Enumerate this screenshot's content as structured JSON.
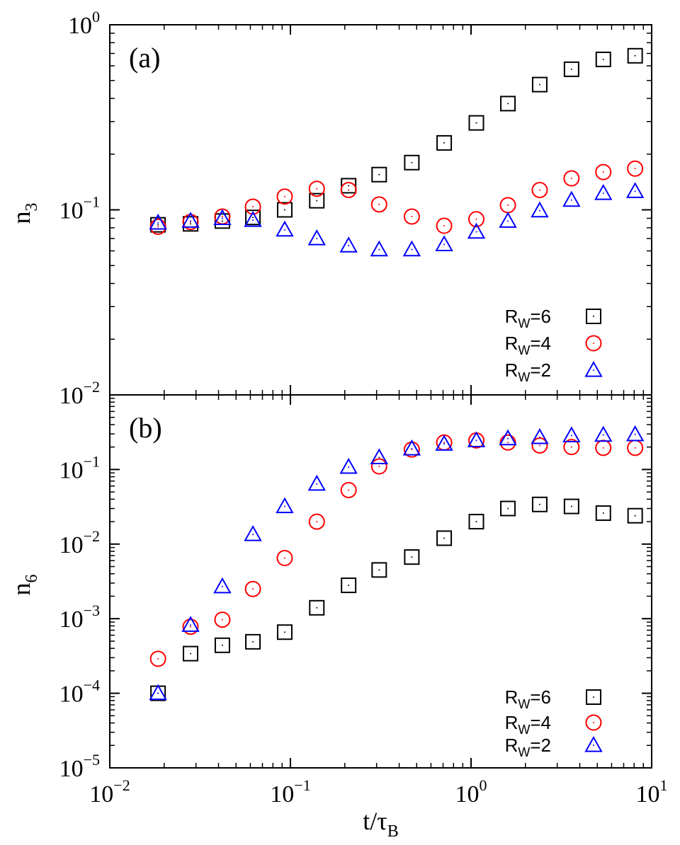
{
  "colors": {
    "axis": "#000000",
    "Rw6": "#000000",
    "Rw4": "#ff0000",
    "Rw2": "#0000ff"
  },
  "xaxis": {
    "label_main": "t/τ",
    "label_sub": "B",
    "range": [
      0.01,
      10
    ],
    "scale": "log",
    "tick_labels": [
      {
        "base": "10",
        "exp": "−2",
        "value": 0.01
      },
      {
        "base": "10",
        "exp": "−1",
        "value": 0.1
      },
      {
        "base": "10",
        "exp": "0",
        "value": 1
      },
      {
        "base": "10",
        "exp": "1",
        "value": 10
      }
    ]
  },
  "chart_data": [
    {
      "type": "scatter",
      "panel_label": "(a)",
      "ylabel_main": "n",
      "ylabel_sub": "3",
      "xscale": "log",
      "yscale": "log",
      "xlim": [
        0.01,
        10
      ],
      "ylim": [
        0.01,
        1
      ],
      "y_tick_labels": [
        {
          "base": "10",
          "exp": "−2",
          "value": 0.01
        },
        {
          "base": "10",
          "exp": "−1",
          "value": 0.1
        },
        {
          "base": "10",
          "exp": "0",
          "value": 1
        }
      ],
      "legend_position": "bottom-right",
      "series": [
        {
          "key": "Rw6",
          "name_main": "R",
          "name_sub": "W",
          "name_tail": "=6",
          "marker": "square",
          "x": [
            0.0185,
            0.028,
            0.042,
            0.062,
            0.093,
            0.14,
            0.21,
            0.31,
            0.47,
            0.71,
            1.07,
            1.6,
            2.4,
            3.6,
            5.4,
            8.1
          ],
          "values": [
            0.083,
            0.084,
            0.087,
            0.091,
            0.1,
            0.112,
            0.135,
            0.155,
            0.18,
            0.23,
            0.295,
            0.375,
            0.475,
            0.575,
            0.65,
            0.68
          ]
        },
        {
          "key": "Rw4",
          "name_main": "R",
          "name_sub": "W",
          "name_tail": "=4",
          "marker": "circle",
          "x": [
            0.0185,
            0.028,
            0.042,
            0.062,
            0.093,
            0.14,
            0.21,
            0.31,
            0.47,
            0.71,
            1.07,
            1.6,
            2.4,
            3.6,
            5.4,
            8.1
          ],
          "values": [
            0.081,
            0.086,
            0.092,
            0.104,
            0.118,
            0.13,
            0.128,
            0.107,
            0.092,
            0.082,
            0.089,
            0.106,
            0.128,
            0.148,
            0.16,
            0.167
          ]
        },
        {
          "key": "Rw2",
          "name_main": "R",
          "name_sub": "W",
          "name_tail": "=2",
          "marker": "triangle",
          "x": [
            0.0185,
            0.028,
            0.042,
            0.062,
            0.093,
            0.14,
            0.21,
            0.31,
            0.47,
            0.71,
            1.07,
            1.6,
            2.4,
            3.6,
            5.4,
            8.1
          ],
          "values": [
            0.085,
            0.087,
            0.09,
            0.088,
            0.078,
            0.07,
            0.064,
            0.061,
            0.061,
            0.065,
            0.076,
            0.087,
            0.099,
            0.113,
            0.123,
            0.126
          ]
        }
      ]
    },
    {
      "type": "scatter",
      "panel_label": "(b)",
      "ylabel_main": "n",
      "ylabel_sub": "6",
      "xscale": "log",
      "yscale": "log",
      "xlim": [
        0.01,
        10
      ],
      "ylim": [
        1e-05,
        1
      ],
      "y_tick_labels": [
        {
          "base": "10",
          "exp": "−5",
          "value": 1e-05
        },
        {
          "base": "10",
          "exp": "−4",
          "value": 0.0001
        },
        {
          "base": "10",
          "exp": "−3",
          "value": 0.001
        },
        {
          "base": "10",
          "exp": "−2",
          "value": 0.01
        },
        {
          "base": "10",
          "exp": "−1",
          "value": 0.1
        }
      ],
      "legend_position": "bottom-right",
      "series": [
        {
          "key": "Rw6",
          "name_main": "R",
          "name_sub": "W",
          "name_tail": "=6",
          "marker": "square",
          "x": [
            0.0185,
            0.028,
            0.042,
            0.062,
            0.093,
            0.14,
            0.21,
            0.31,
            0.47,
            0.71,
            1.07,
            1.6,
            2.4,
            3.6,
            5.4,
            8.1
          ],
          "values": [
            0.0001,
            0.00034,
            0.00044,
            0.00049,
            0.00066,
            0.0014,
            0.0028,
            0.0045,
            0.0067,
            0.012,
            0.02,
            0.03,
            0.034,
            0.032,
            0.026,
            0.024
          ]
        },
        {
          "key": "Rw4",
          "name_main": "R",
          "name_sub": "W",
          "name_tail": "=4",
          "marker": "circle",
          "x": [
            0.0185,
            0.028,
            0.042,
            0.062,
            0.093,
            0.14,
            0.21,
            0.31,
            0.47,
            0.71,
            1.07,
            1.6,
            2.4,
            3.6,
            5.4,
            8.1
          ],
          "values": [
            0.00029,
            0.00078,
            0.00097,
            0.0025,
            0.0065,
            0.02,
            0.053,
            0.11,
            0.185,
            0.23,
            0.245,
            0.23,
            0.21,
            0.2,
            0.195,
            0.195
          ]
        },
        {
          "key": "Rw2",
          "name_main": "R",
          "name_sub": "W",
          "name_tail": "=2",
          "marker": "triangle",
          "x": [
            0.0185,
            0.028,
            0.042,
            0.062,
            0.093,
            0.14,
            0.21,
            0.31,
            0.47,
            0.71,
            1.07,
            1.6,
            2.4,
            3.6,
            5.4,
            8.1
          ],
          "values": [
            0.0001,
            0.00082,
            0.0027,
            0.0135,
            0.032,
            0.064,
            0.108,
            0.145,
            0.19,
            0.22,
            0.245,
            0.26,
            0.27,
            0.285,
            0.29,
            0.295
          ]
        }
      ]
    }
  ]
}
